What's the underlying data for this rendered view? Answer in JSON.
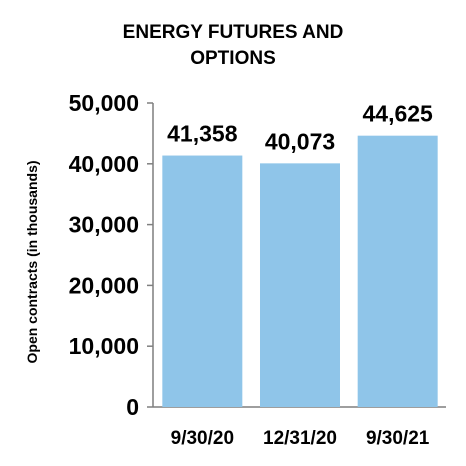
{
  "chart_data": {
    "type": "bar",
    "title": [
      "ENERGY FUTURES AND",
      "OPTIONS"
    ],
    "ylabel": "Open contracts (in thousands)",
    "xlabel": "",
    "categories": [
      "9/30/20",
      "12/31/20",
      "9/30/21"
    ],
    "values": [
      41358,
      40073,
      44625
    ],
    "data_labels": [
      "41,358",
      "40,073",
      "44,625"
    ],
    "ylim": [
      0,
      50000
    ],
    "yticks": [
      0,
      10000,
      20000,
      30000,
      40000,
      50000
    ],
    "ytick_labels": [
      "0",
      "10,000",
      "20,000",
      "30,000",
      "40,000",
      "50,000"
    ],
    "grid": false,
    "legend": "none",
    "bar_color": "#8fc5e9"
  }
}
